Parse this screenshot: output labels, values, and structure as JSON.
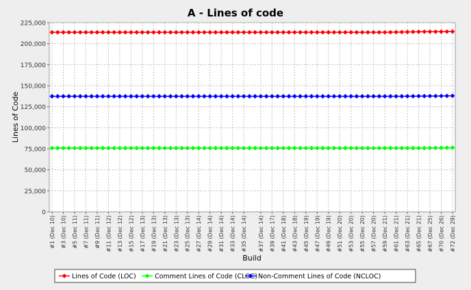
{
  "chart_data": {
    "type": "line",
    "title": "A - Lines of code",
    "xlabel": "Build",
    "ylabel": "Lines of Code",
    "ylim": [
      0,
      225000
    ],
    "yticks": [
      0,
      25000,
      50000,
      75000,
      100000,
      125000,
      150000,
      175000,
      200000,
      225000
    ],
    "ytick_labels": [
      "0",
      "25,000",
      "50,000",
      "75,000",
      "100,000",
      "125,000",
      "150,000",
      "175,000",
      "200,000",
      "225,000"
    ],
    "grid": true,
    "legend_position": "bottom",
    "x_tick_labels": [
      "#1 (Dec 10)",
      "#3 (Dec 10)",
      "#5 (Dec 11)",
      "#7 (Dec 11)",
      "#9 (Dec 11)",
      "#11 (Dec 12)",
      "#13 (Dec 12)",
      "#15 (Dec 12)",
      "#17 (Dec 13)",
      "#19 (Dec 13)",
      "#21 (Dec 13)",
      "#23 (Dec 13)",
      "#25 (Dec 13)",
      "#27 (Dec 14)",
      "#29 (Dec 14)",
      "#31 (Dec 14)",
      "#33 (Dec 14)",
      "#35 (Dec 14)",
      "#37 (Dec 14)",
      "#39 (Dec 17)",
      "#41 (Dec 18)",
      "#43 (Dec 18)",
      "#45 (Dec 19)",
      "#47 (Dec 19)",
      "#49 (Dec 19)",
      "#51 (Dec 20)",
      "#53 (Dec 20)",
      "#55 (Dec 20)",
      "#57 (Dec 20)",
      "#59 (Dec 21)",
      "#61 (Dec 21)",
      "#63 (Dec 21)",
      "#65 (Dec 21)",
      "#67 (Dec 25)",
      "#70 (Dec 26)",
      "#72 (Dec 29)"
    ],
    "n_points": 72,
    "series": [
      {
        "name": "Lines of Code (LOC)",
        "color": "#ff0000",
        "values": [
          213500,
          213500,
          213500,
          213500,
          213500,
          213500,
          213500,
          213500,
          213500,
          213500,
          213500,
          213500,
          213500,
          213500,
          213500,
          213500,
          213500,
          213500,
          213500,
          213500,
          213500,
          213500,
          213500,
          213500,
          213500,
          213500,
          213500,
          213500,
          213500,
          213500,
          213500,
          213500,
          213500,
          213500,
          213500,
          213500,
          213500,
          213500,
          213500,
          213500,
          213500,
          213500,
          213500,
          213500,
          213500,
          213500,
          213500,
          213500,
          213500,
          213500,
          213500,
          213500,
          213500,
          213500,
          213500,
          213500,
          213500,
          213500,
          213500,
          213500,
          213600,
          213700,
          213800,
          213900,
          214000,
          214100,
          214200,
          214200,
          214200,
          214200,
          214300,
          214400
        ]
      },
      {
        "name": "Comment Lines of Code (CLOC)",
        "color": "#00ff00",
        "values": [
          75800,
          75800,
          75800,
          75800,
          75800,
          75800,
          75800,
          75800,
          75800,
          75800,
          75800,
          75800,
          75800,
          75800,
          75800,
          75800,
          75800,
          75800,
          75800,
          75800,
          75800,
          75800,
          75800,
          75800,
          75800,
          75800,
          75800,
          75800,
          75800,
          75800,
          75800,
          75800,
          75800,
          75800,
          75800,
          75800,
          75800,
          75800,
          75800,
          75800,
          75800,
          75800,
          75800,
          75800,
          75800,
          75800,
          75800,
          75800,
          75800,
          75800,
          75800,
          75800,
          75800,
          75800,
          75800,
          75800,
          75800,
          75800,
          75800,
          75800,
          75800,
          75800,
          75800,
          75800,
          75800,
          75800,
          75800,
          75900,
          76000,
          76100,
          76200,
          76300
        ]
      },
      {
        "name": "Non-Comment Lines of Code (NCLOC)",
        "color": "#0000ff",
        "values": [
          137400,
          137400,
          137400,
          137400,
          137400,
          137400,
          137400,
          137400,
          137400,
          137400,
          137400,
          137400,
          137400,
          137400,
          137400,
          137400,
          137400,
          137400,
          137400,
          137400,
          137400,
          137400,
          137400,
          137400,
          137400,
          137400,
          137400,
          137400,
          137400,
          137400,
          137400,
          137400,
          137400,
          137400,
          137400,
          137400,
          137400,
          137400,
          137400,
          137400,
          137400,
          137400,
          137400,
          137400,
          137400,
          137400,
          137400,
          137400,
          137400,
          137400,
          137400,
          137400,
          137400,
          137400,
          137400,
          137400,
          137400,
          137400,
          137400,
          137400,
          137400,
          137400,
          137400,
          137500,
          137500,
          137600,
          137600,
          137700,
          137700,
          137800,
          137900,
          138000
        ]
      }
    ]
  }
}
